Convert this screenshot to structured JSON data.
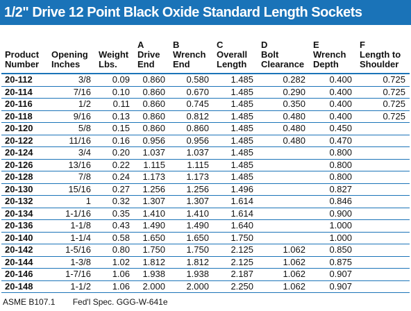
{
  "title": "1/2\" Drive 12 Point Black Oxide Standard Length Sockets",
  "columns": [
    {
      "letter": "",
      "label1": "Product",
      "label2": "Number",
      "label3": ""
    },
    {
      "letter": "",
      "label1": "Opening",
      "label2": "Inches",
      "label3": ""
    },
    {
      "letter": "",
      "label1": "Weight",
      "label2": "Lbs.",
      "label3": ""
    },
    {
      "letter": "A",
      "label1": "Drive",
      "label2": "End",
      "label3": ""
    },
    {
      "letter": "B",
      "label1": "Wrench",
      "label2": "End",
      "label3": ""
    },
    {
      "letter": "C",
      "label1": "Overall",
      "label2": "Length",
      "label3": ""
    },
    {
      "letter": "D",
      "label1": "Bolt",
      "label2": "Clearance",
      "label3": ""
    },
    {
      "letter": "E",
      "label1": "Wrench",
      "label2": "Depth",
      "label3": ""
    },
    {
      "letter": "F",
      "label1": "Length to",
      "label2": "Shoulder",
      "label3": ""
    }
  ],
  "rows": [
    [
      "20-112",
      "3/8",
      "0.09",
      "0.860",
      "0.580",
      "1.485",
      "0.282",
      "0.400",
      "0.725"
    ],
    [
      "20-114",
      "7/16",
      "0.10",
      "0.860",
      "0.670",
      "1.485",
      "0.290",
      "0.400",
      "0.725"
    ],
    [
      "20-116",
      "1/2",
      "0.11",
      "0.860",
      "0.745",
      "1.485",
      "0.350",
      "0.400",
      "0.725"
    ],
    [
      "20-118",
      "9/16",
      "0.13",
      "0.860",
      "0.812",
      "1.485",
      "0.480",
      "0.400",
      "0.725"
    ],
    [
      "20-120",
      "5/8",
      "0.15",
      "0.860",
      "0.860",
      "1.485",
      "0.480",
      "0.450",
      ""
    ],
    [
      "20-122",
      "11/16",
      "0.16",
      "0.956",
      "0.956",
      "1.485",
      "0.480",
      "0.470",
      ""
    ],
    [
      "20-124",
      "3/4",
      "0.20",
      "1.037",
      "1.037",
      "1.485",
      "",
      "0.800",
      ""
    ],
    [
      "20-126",
      "13/16",
      "0.22",
      "1.115",
      "1.115",
      "1.485",
      "",
      "0.800",
      ""
    ],
    [
      "20-128",
      "7/8",
      "0.24",
      "1.173",
      "1.173",
      "1.485",
      "",
      "0.800",
      ""
    ],
    [
      "20-130",
      "15/16",
      "0.27",
      "1.256",
      "1.256",
      "1.496",
      "",
      "0.827",
      ""
    ],
    [
      "20-132",
      "1",
      "0.32",
      "1.307",
      "1.307",
      "1.614",
      "",
      "0.846",
      ""
    ],
    [
      "20-134",
      "1-1/16",
      "0.35",
      "1.410",
      "1.410",
      "1.614",
      "",
      "0.900",
      ""
    ],
    [
      "20-136",
      "1-1/8",
      "0.43",
      "1.490",
      "1.490",
      "1.640",
      "",
      "1.000",
      ""
    ],
    [
      "20-140",
      "1-1/4",
      "0.58",
      "1.650",
      "1.650",
      "1.750",
      "",
      "1.000",
      ""
    ],
    [
      "20-142",
      "1-5/16",
      "0.80",
      "1.750",
      "1.750",
      "2.125",
      "1.062",
      "0.850",
      ""
    ],
    [
      "20-144",
      "1-3/8",
      "1.02",
      "1.812",
      "1.812",
      "2.125",
      "1.062",
      "0.875",
      ""
    ],
    [
      "20-146",
      "1-7/16",
      "1.06",
      "1.938",
      "1.938",
      "2.187",
      "1.062",
      "0.907",
      ""
    ],
    [
      "20-148",
      "1-1/2",
      "1.06",
      "2.000",
      "2.000",
      "2.250",
      "1.062",
      "0.907",
      ""
    ]
  ],
  "footer": {
    "standard": "ASME B107.1",
    "spec": "Fed'l Spec. GGG-W-641e"
  },
  "colors": {
    "header_bar": "#1a73b8",
    "rule_lines": "#1a73b8"
  }
}
